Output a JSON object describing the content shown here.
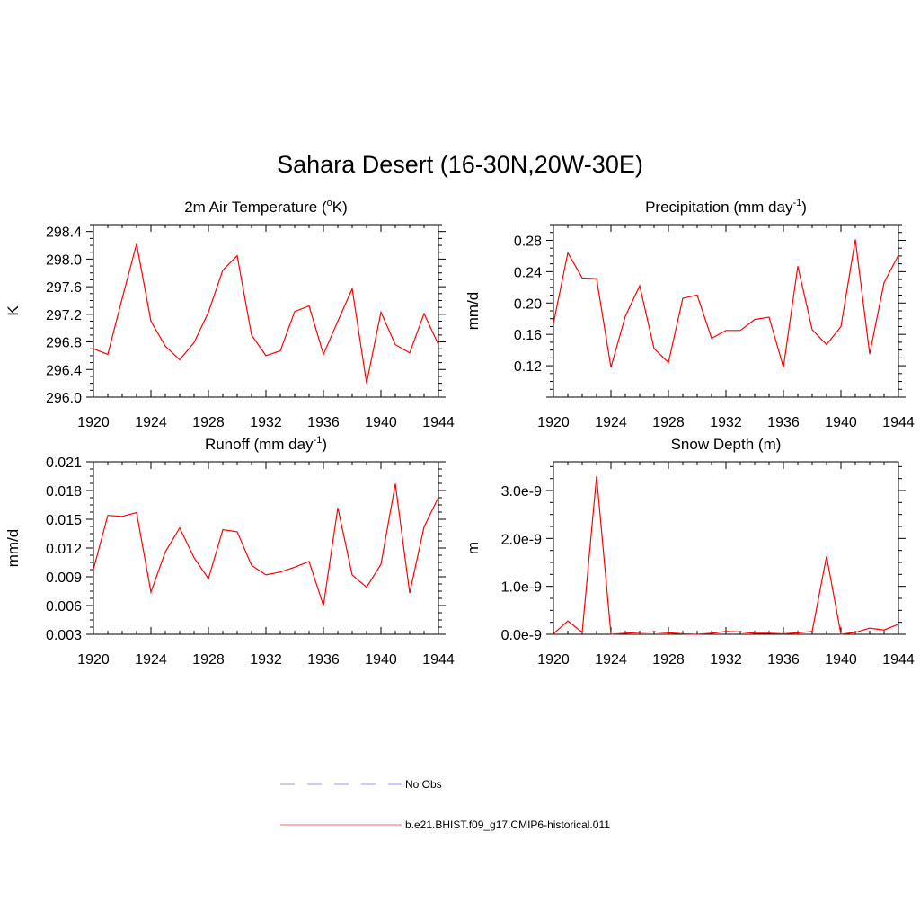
{
  "title": "Sahara Desert (16-30N,20W-30E)",
  "legend": {
    "items": [
      {
        "label": "No Obs",
        "color": "#aaaaff",
        "dash": true
      },
      {
        "label": "b.e21.BHIST.f09_g17.CMIP6-historical.011",
        "color": "#ff8080",
        "dash": false
      }
    ]
  },
  "colors": {
    "series": "#ff0000"
  },
  "chart_data": [
    {
      "type": "line",
      "title": "2m Air Temperature (",
      "title_sup": "o",
      "title_tail": "K)",
      "ylabel": "K",
      "xlim": [
        1920,
        1944
      ],
      "ylim": [
        296.0,
        298.5
      ],
      "x_ticks": [
        1920,
        1924,
        1928,
        1932,
        1936,
        1940,
        1944
      ],
      "y_ticks": [
        296.0,
        296.4,
        296.8,
        297.2,
        297.6,
        298.0,
        298.4
      ],
      "y_tick_labels": [
        "296.0",
        "296.4",
        "296.8",
        "297.2",
        "297.6",
        "298.0",
        "298.4"
      ],
      "x": [
        1920,
        1921,
        1922,
        1923,
        1924,
        1925,
        1926,
        1927,
        1928,
        1929,
        1930,
        1931,
        1932,
        1933,
        1934,
        1935,
        1936,
        1937,
        1938,
        1939,
        1940,
        1941,
        1942,
        1943,
        1944
      ],
      "series": [
        {
          "values": [
            296.7,
            296.62,
            297.43,
            298.22,
            297.1,
            296.74,
            296.54,
            296.79,
            297.23,
            297.84,
            298.05,
            296.9,
            296.6,
            296.67,
            297.24,
            297.32,
            296.62,
            297.1,
            297.57,
            296.2,
            297.23,
            296.76,
            296.64,
            297.21,
            296.76
          ]
        }
      ]
    },
    {
      "type": "line",
      "title": "Precipitation (mm day",
      "title_sup": "-1",
      "title_tail": ")",
      "ylabel": "mm/d",
      "xlim": [
        1920,
        1944
      ],
      "ylim": [
        0.08,
        0.3
      ],
      "x_ticks": [
        1920,
        1924,
        1928,
        1932,
        1936,
        1940,
        1944
      ],
      "y_ticks": [
        0.12,
        0.16,
        0.2,
        0.24,
        0.28
      ],
      "y_tick_labels": [
        "0.12",
        "0.16",
        "0.20",
        "0.24",
        "0.28"
      ],
      "x": [
        1920,
        1921,
        1922,
        1923,
        1924,
        1925,
        1926,
        1927,
        1928,
        1929,
        1930,
        1931,
        1932,
        1933,
        1934,
        1935,
        1936,
        1937,
        1938,
        1939,
        1940,
        1941,
        1942,
        1943,
        1944
      ],
      "series": [
        {
          "values": [
            0.174,
            0.264,
            0.232,
            0.231,
            0.118,
            0.183,
            0.222,
            0.142,
            0.124,
            0.206,
            0.21,
            0.155,
            0.165,
            0.165,
            0.179,
            0.182,
            0.118,
            0.247,
            0.166,
            0.147,
            0.17,
            0.281,
            0.135,
            0.226,
            0.261
          ]
        }
      ]
    },
    {
      "type": "line",
      "title": "Runoff (mm day",
      "title_sup": "-1",
      "title_tail": ")",
      "ylabel": "mm/d",
      "xlim": [
        1920,
        1944
      ],
      "ylim": [
        0.003,
        0.021
      ],
      "x_ticks": [
        1920,
        1924,
        1928,
        1932,
        1936,
        1940,
        1944
      ],
      "y_ticks": [
        0.003,
        0.006,
        0.009,
        0.012,
        0.015,
        0.018,
        0.021
      ],
      "y_tick_labels": [
        "0.003",
        "0.006",
        "0.009",
        "0.012",
        "0.015",
        "0.018",
        "0.021"
      ],
      "x": [
        1920,
        1921,
        1922,
        1923,
        1924,
        1925,
        1926,
        1927,
        1928,
        1929,
        1930,
        1931,
        1932,
        1933,
        1934,
        1935,
        1936,
        1937,
        1938,
        1939,
        1940,
        1941,
        1942,
        1943,
        1944
      ],
      "series": [
        {
          "values": [
            0.0098,
            0.0154,
            0.0153,
            0.0157,
            0.0074,
            0.0116,
            0.0141,
            0.011,
            0.0088,
            0.0139,
            0.0137,
            0.0102,
            0.0092,
            0.0095,
            0.01,
            0.0106,
            0.006,
            0.0162,
            0.0092,
            0.0079,
            0.0103,
            0.0187,
            0.0073,
            0.0142,
            0.0173
          ]
        }
      ]
    },
    {
      "type": "line",
      "title": "Snow Depth (m)",
      "title_sup": "",
      "title_tail": "",
      "ylabel": "m",
      "xlim": [
        1920,
        1944
      ],
      "ylim": [
        0,
        3.6e-09
      ],
      "x_ticks": [
        1920,
        1924,
        1928,
        1932,
        1936,
        1940,
        1944
      ],
      "y_ticks": [
        0,
        1e-09,
        2e-09,
        3e-09
      ],
      "y_tick_labels": [
        "0.0e-9",
        "1.0e-9",
        "2.0e-9",
        "3.0e-9"
      ],
      "x": [
        1920,
        1921,
        1922,
        1923,
        1924,
        1925,
        1926,
        1927,
        1928,
        1929,
        1930,
        1931,
        1932,
        1933,
        1934,
        1935,
        1936,
        1937,
        1938,
        1939,
        1940,
        1941,
        1942,
        1943,
        1944
      ],
      "series": [
        {
          "values": [
            1e-11,
            2.8e-10,
            4e-11,
            3.3e-09,
            0.0,
            2e-11,
            4e-11,
            5e-11,
            3e-11,
            1e-11,
            0.0,
            2e-11,
            6e-11,
            5e-11,
            2e-11,
            2e-11,
            1e-11,
            3e-11,
            6e-11,
            1.63e-09,
            0.0,
            4e-11,
            1.3e-10,
            9e-11,
            2.1e-10
          ]
        }
      ]
    }
  ]
}
